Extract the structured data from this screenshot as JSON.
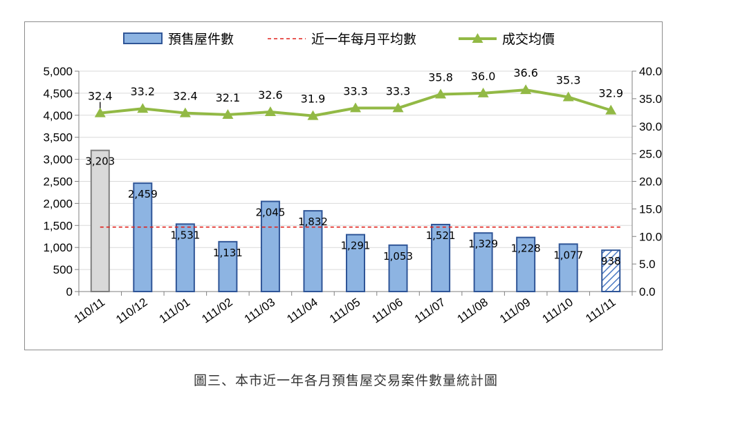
{
  "chart_data": {
    "type": "bar",
    "categories": [
      "110/11",
      "110/12",
      "111/01",
      "111/02",
      "111/03",
      "111/04",
      "111/05",
      "111/06",
      "111/07",
      "111/08",
      "111/09",
      "111/10",
      "111/11"
    ],
    "series": [
      {
        "name": "預售屋件數",
        "kind": "bar",
        "axis": "left",
        "values": [
          3203,
          2459,
          1531,
          1131,
          2045,
          1832,
          1291,
          1053,
          1521,
          1329,
          1228,
          1077,
          938
        ],
        "labels": [
          "3,203",
          "2,459",
          "1,531",
          "1,131",
          "2,045",
          "1,832",
          "1,291",
          "1,053",
          "1,521",
          "1,329",
          "1,228",
          "1,077",
          "938"
        ],
        "color": "#8db4e2",
        "edge_color": "#2f5597",
        "first_bar_color": "#d9d9d9",
        "first_bar_edge": "#7f7f7f",
        "last_bar_pattern": "diagonal-hatch"
      },
      {
        "name": "近一年每月平均數",
        "kind": "line",
        "axis": "left",
        "value": 1463,
        "color": "#e0201b",
        "style": "dashed"
      },
      {
        "name": "成交均價",
        "kind": "line",
        "axis": "right",
        "values": [
          32.4,
          33.2,
          32.4,
          32.1,
          32.6,
          31.9,
          33.3,
          33.3,
          35.8,
          36.0,
          36.6,
          35.3,
          32.9
        ],
        "labels": [
          "32.4",
          "33.2",
          "32.4",
          "32.1",
          "32.6",
          "31.9",
          "33.3",
          "33.3",
          "35.8",
          "36.0",
          "36.6",
          "35.3",
          "32.9"
        ],
        "color": "#92b945",
        "marker": "triangle"
      }
    ],
    "y_left": {
      "range": [
        0,
        5000
      ],
      "ticks": [
        0,
        500,
        1000,
        1500,
        2000,
        2500,
        3000,
        3500,
        4000,
        4500,
        5000
      ],
      "tick_labels": [
        "0",
        "500",
        "1,000",
        "1,500",
        "2,000",
        "2,500",
        "3,000",
        "3,500",
        "4,000",
        "4,500",
        "5,000"
      ]
    },
    "y_right": {
      "range": [
        0,
        40
      ],
      "ticks": [
        0,
        5,
        10,
        15,
        20,
        25,
        30,
        35,
        40
      ],
      "tick_labels": [
        "0.0",
        "5.0",
        "10.0",
        "15.0",
        "20.0",
        "25.0",
        "30.0",
        "35.0",
        "40.0"
      ]
    },
    "grid": true,
    "legend_position": "top",
    "title": "",
    "xlabel": "",
    "ylabel": ""
  },
  "caption": "圖三、本市近一年各月預售屋交易案件數量統計圖"
}
